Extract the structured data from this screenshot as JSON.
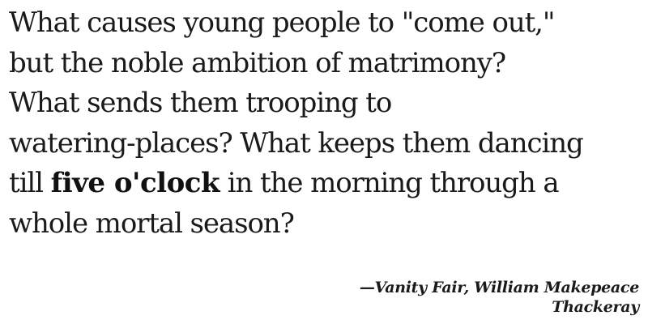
{
  "quote": {
    "lines": [
      "What causes young people to \"come out,\"",
      "but the noble ambition of matrimony?",
      "What sends them trooping to",
      "watering-places? What keeps them dancing"
    ],
    "line5_before": "till ",
    "emphasis": "five o'clock",
    "line5_after": " in the morning through a",
    "line6": "whole mortal season?"
  },
  "attribution": {
    "line1": "—Vanity Fair, William Makepeace",
    "line2": "Thackeray"
  }
}
